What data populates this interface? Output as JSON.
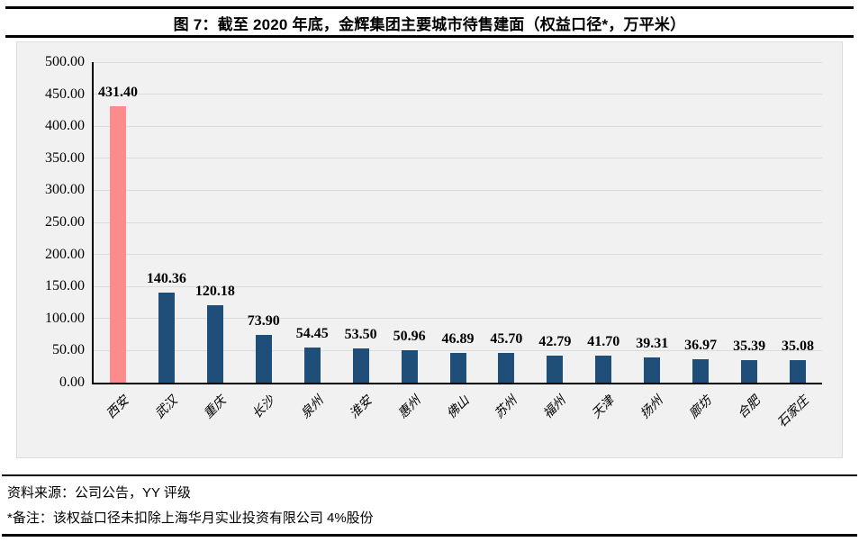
{
  "title": "图 7：截至 2020 年底，金辉集团主要城市待售建面（权益口径*，万平米）",
  "footer": {
    "source": "资料来源：公司公告，YY 评级",
    "note": "*备注：该权益口径未扣除上海华月实业投资有限公司 4%股份"
  },
  "colors": {
    "bar": "#1F4E79",
    "highlight": "#FC8B8B",
    "plot_bg": "#F1F1F1",
    "gridline": "#DCDCDC",
    "rule": "#000000"
  },
  "chart_data": {
    "type": "bar",
    "title": "图 7：截至 2020 年底，金辉集团主要城市待售建面（权益口径*，万平米）",
    "categories": [
      "西安",
      "武汉",
      "重庆",
      "长沙",
      "泉州",
      "淮安",
      "惠州",
      "佛山",
      "苏州",
      "福州",
      "天津",
      "扬州",
      "廊坊",
      "合肥",
      "石家庄"
    ],
    "values": [
      431.4,
      140.36,
      120.18,
      73.9,
      54.45,
      53.5,
      50.96,
      46.89,
      45.7,
      42.79,
      41.7,
      39.31,
      36.97,
      35.39,
      35.08
    ],
    "value_labels": [
      "431.40",
      "140.36",
      "120.18",
      "73.90",
      "54.45",
      "53.50",
      "50.96",
      "46.89",
      "45.70",
      "42.79",
      "41.70",
      "39.31",
      "36.97",
      "35.39",
      "35.08"
    ],
    "xlabel": "",
    "ylabel": "",
    "ylim": [
      0,
      500
    ],
    "ytick_step": 50,
    "ytick_labels": [
      "0.00",
      "50.00",
      "100.00",
      "150.00",
      "200.00",
      "250.00",
      "300.00",
      "350.00",
      "400.00",
      "450.00",
      "500.00"
    ],
    "grid": true,
    "legend": false,
    "highlight_index": 0,
    "bar_color": "#1F4E79",
    "highlight_color": "#FC8B8B"
  }
}
